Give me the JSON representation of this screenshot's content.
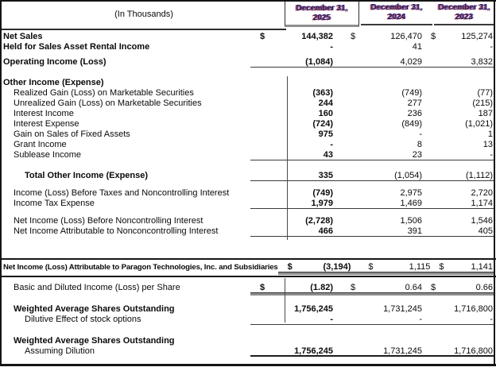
{
  "header": {
    "caption": "(In Thousands)",
    "columns": [
      {
        "line1": "December 31,",
        "year": "2025"
      },
      {
        "line1": "December 31,",
        "year": "2024"
      },
      {
        "line1": "December 31,",
        "year": "2023"
      }
    ]
  },
  "colors": {
    "rule_heavy": "#161616",
    "double_underline_gray": "#8f8f8f",
    "header_artifact_red": "#b22a2a",
    "header_artifact_blue": "#4646c8",
    "text": "#0a0a0a"
  },
  "table": {
    "currency": "$",
    "rows": [
      {
        "label": "Net Sales",
        "bold": true,
        "dollar": true,
        "indent": 0,
        "values": [
          "144,382",
          "126,470",
          "125,274"
        ]
      },
      {
        "label": "Held for Sales Asset Rental Income",
        "bold": true,
        "indent": 0,
        "values": [
          "-",
          "41",
          "-"
        ]
      },
      {
        "label": "Operating Income (Loss)",
        "bold": true,
        "indent": 0,
        "values": [
          "(1,084)",
          "4,029",
          "3,832"
        ],
        "u": "s",
        "mt": 6
      },
      {
        "label": "Other Income (Expense)",
        "bold": true,
        "indent": 0,
        "mt": 13
      },
      {
        "label": "Realized Gain (Loss) on Marketable Securities",
        "indent": 1,
        "values": [
          "(363)",
          "(749)",
          "(77)"
        ]
      },
      {
        "label": "Unrealized Gain (Loss) on Marketable Securities",
        "indent": 1,
        "values": [
          "244",
          "277",
          "(215)"
        ]
      },
      {
        "label": "Interest Income",
        "indent": 1,
        "values": [
          "160",
          "236",
          "187"
        ]
      },
      {
        "label": "Interest Expense",
        "indent": 1,
        "values": [
          "(724)",
          "(849)",
          "(1,021)"
        ]
      },
      {
        "label": "Gain on Sales of Fixed Assets",
        "indent": 1,
        "values": [
          "975",
          "-",
          "1"
        ]
      },
      {
        "label": "Grant Income",
        "indent": 1,
        "values": [
          "-",
          "8",
          "13"
        ]
      },
      {
        "label": "Sublease Income",
        "indent": 1,
        "values": [
          "43",
          "23",
          "-"
        ],
        "u": "s"
      },
      {
        "label": "Total Other Income (Expense)",
        "bold": true,
        "indent": 2,
        "values": [
          "335",
          "(1,054)",
          "(1,112)"
        ],
        "u": "s",
        "mt": 13
      },
      {
        "label": "Income (Loss) Before Taxes and Noncontrolling Interest",
        "indent": 1,
        "values": [
          "(749)",
          "2,975",
          "2,720"
        ],
        "mt": 9
      },
      {
        "label": "Income Tax Expense",
        "indent": 1,
        "values": [
          "1,979",
          "1,469",
          "1,174"
        ],
        "u": "s"
      },
      {
        "label": "Net Income (Loss) Before Noncontrolling Interest",
        "indent": 1,
        "values": [
          "(2,728)",
          "1,506",
          "1,546"
        ],
        "mt": 9
      },
      {
        "label": "Net Income Attributable to Nonconcontrolling Interest",
        "indent": 1,
        "values": [
          "466",
          "391",
          "405"
        ],
        "u": "s"
      },
      {
        "type": "rule",
        "mt": 27
      },
      {
        "label": "Net Income (Loss) Attributable to Paragon Technologies, Inc. and Subsidiaries",
        "bold": true,
        "dollar": true,
        "indent": 0,
        "values": [
          "(3,194)",
          "1,115",
          "1,141"
        ],
        "u": "d",
        "mt": 3
      },
      {
        "type": "rule",
        "mt": 4
      },
      {
        "label": "Basic and Diluted Income (Loss) per Share",
        "indent": 1,
        "dollar": true,
        "values": [
          "(1.82)",
          "0.64",
          "0.66"
        ],
        "u": "d",
        "mt": 7
      },
      {
        "label": "Weighted Average Shares Outstanding",
        "bold": true,
        "indent": 1,
        "values": [
          "1,756,245",
          "1,731,245",
          "1,716,800"
        ],
        "mt": 14
      },
      {
        "label": "Dilutive Effect of stock options",
        "indent": 2,
        "values": [
          "-",
          "-",
          "-"
        ],
        "u": "s"
      },
      {
        "label": "Weighted Average Shares Outstanding",
        "bold": true,
        "indent": 1,
        "mt": 14
      },
      {
        "label": "Assuming Dilution",
        "indent": 2,
        "values": [
          "1,756,245",
          "1,731,245",
          "1,716,800"
        ],
        "u": "sd"
      }
    ]
  }
}
